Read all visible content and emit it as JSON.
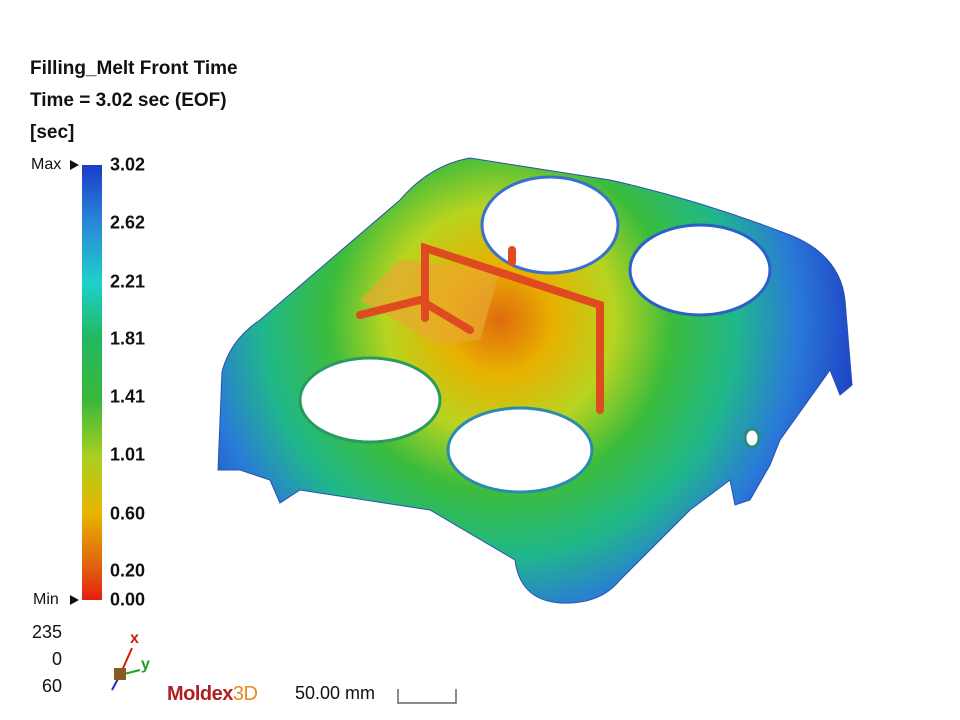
{
  "header": {
    "title": "Filling_Melt Front Time",
    "time": "Time = 3.02 sec (EOF)",
    "unit": "[sec]"
  },
  "legend": {
    "max_label": "Max",
    "min_label": "Min",
    "ticks": [
      "3.02",
      "2.62",
      "2.21",
      "1.81",
      "1.41",
      "1.01",
      "0.60",
      "0.20",
      "0.00"
    ]
  },
  "view": {
    "angles": [
      "235",
      "0",
      "60"
    ],
    "axis_x": "x",
    "axis_y": "y"
  },
  "logo": {
    "name": "Moldex",
    "suffix": "3D"
  },
  "scale_bar": {
    "label": "50.00 mm"
  }
}
